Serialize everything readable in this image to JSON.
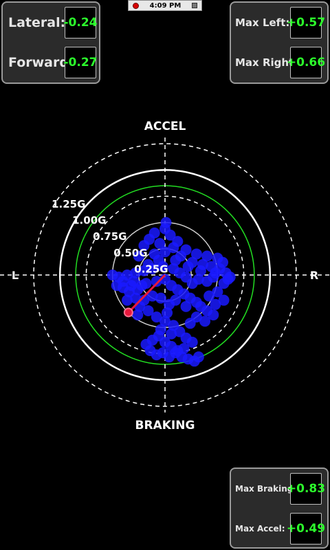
{
  "status_bar": {
    "time": "4:09 PM"
  },
  "top_left": {
    "lateral_label": "Lateral:",
    "lateral_value": "-0.24",
    "forward_label": "Forward:",
    "forward_value": "-0.27"
  },
  "top_right": {
    "max_left_label": "Max Left:",
    "max_left_value": "+0.57",
    "max_right_label": "Max Right:",
    "max_right_value": "+0.66"
  },
  "bottom_right": {
    "max_braking_label": "Max Braking:",
    "max_braking_value": "+0.83",
    "max_accel_label": "Max Accel:",
    "max_accel_value": "+0.49"
  },
  "plot": {
    "accel_label": "ACCEL",
    "braking_label": "BRAKING",
    "left_label": "L",
    "right_label": "R",
    "rings": [
      {
        "g": 0.25,
        "label": "0.25G",
        "style": "solid",
        "color": "#cfcfcf"
      },
      {
        "g": 0.5,
        "label": "0.50G",
        "style": "solid",
        "color": "#cfcfcf"
      },
      {
        "g": 0.75,
        "label": "0.75G",
        "style": "dashed",
        "color": "#ffffff"
      },
      {
        "g": 0.85,
        "label": "",
        "style": "solid",
        "color": "#22dd22"
      },
      {
        "g": 1.0,
        "label": "1.00G",
        "style": "solid",
        "color": "#ffffff"
      },
      {
        "g": 1.25,
        "label": "1.25G",
        "style": "dashed",
        "color": "#ffffff"
      }
    ],
    "current_point": {
      "lateral": -0.24,
      "forward": -0.27
    },
    "trace_points": [
      [
        0.01,
        0.5
      ],
      [
        0.0,
        0.44
      ],
      [
        -0.1,
        0.4
      ],
      [
        0.05,
        0.38
      ],
      [
        -0.15,
        0.34
      ],
      [
        0.12,
        0.32
      ],
      [
        -0.05,
        0.3
      ],
      [
        0.08,
        0.26
      ],
      [
        -0.2,
        0.28
      ],
      [
        0.2,
        0.24
      ],
      [
        0.0,
        0.22
      ],
      [
        -0.1,
        0.2
      ],
      [
        0.15,
        0.18
      ],
      [
        -0.25,
        0.18
      ],
      [
        0.3,
        0.2
      ],
      [
        0.4,
        0.18
      ],
      [
        0.5,
        0.16
      ],
      [
        0.55,
        0.12
      ],
      [
        0.52,
        0.06
      ],
      [
        0.48,
        0.02
      ],
      [
        0.36,
        0.1
      ],
      [
        0.26,
        0.12
      ],
      [
        0.44,
        0.08
      ],
      [
        0.58,
        0.02
      ],
      [
        0.6,
        -0.04
      ],
      [
        0.62,
        -0.02
      ],
      [
        0.56,
        -0.08
      ],
      [
        0.46,
        -0.02
      ],
      [
        0.4,
        -0.06
      ],
      [
        0.32,
        -0.04
      ],
      [
        0.26,
        -0.08
      ],
      [
        0.2,
        -0.02
      ],
      [
        0.14,
        0.02
      ],
      [
        0.08,
        0.06
      ],
      [
        -0.02,
        0.08
      ],
      [
        -0.12,
        0.06
      ],
      [
        -0.2,
        0.04
      ],
      [
        -0.28,
        0.02
      ],
      [
        -0.36,
        0.0
      ],
      [
        -0.44,
        -0.02
      ],
      [
        -0.5,
        0.0
      ],
      [
        -0.4,
        -0.06
      ],
      [
        -0.32,
        -0.1
      ],
      [
        -0.26,
        -0.14
      ],
      [
        -0.18,
        -0.08
      ],
      [
        -0.08,
        -0.06
      ],
      [
        0.0,
        -0.04
      ],
      [
        0.06,
        -0.1
      ],
      [
        0.12,
        -0.14
      ],
      [
        0.18,
        -0.18
      ],
      [
        0.24,
        -0.22
      ],
      [
        0.3,
        -0.26
      ],
      [
        0.34,
        -0.3
      ],
      [
        0.4,
        -0.34
      ],
      [
        0.46,
        -0.38
      ],
      [
        0.38,
        -0.44
      ],
      [
        0.3,
        -0.4
      ],
      [
        0.2,
        -0.3
      ],
      [
        0.1,
        -0.24
      ],
      [
        0.04,
        -0.28
      ],
      [
        -0.04,
        -0.22
      ],
      [
        -0.12,
        -0.2
      ],
      [
        -0.2,
        -0.24
      ],
      [
        -0.28,
        -0.22
      ],
      [
        -0.34,
        -0.16
      ],
      [
        -0.4,
        -0.12
      ],
      [
        -0.46,
        -0.1
      ],
      [
        -0.36,
        -0.24
      ],
      [
        -0.24,
        -0.3
      ],
      [
        -0.16,
        -0.34
      ],
      [
        -0.08,
        -0.4
      ],
      [
        0.0,
        -0.44
      ],
      [
        0.08,
        -0.48
      ],
      [
        0.14,
        -0.54
      ],
      [
        0.2,
        -0.6
      ],
      [
        0.26,
        -0.64
      ],
      [
        0.18,
        -0.7
      ],
      [
        0.1,
        -0.74
      ],
      [
        0.04,
        -0.78
      ],
      [
        -0.02,
        -0.74
      ],
      [
        -0.08,
        -0.76
      ],
      [
        -0.14,
        -0.72
      ],
      [
        -0.18,
        -0.66
      ],
      [
        -0.12,
        -0.62
      ],
      [
        -0.06,
        -0.58
      ],
      [
        0.0,
        -0.64
      ],
      [
        0.06,
        -0.68
      ],
      [
        0.12,
        -0.72
      ],
      [
        0.16,
        -0.78
      ],
      [
        0.22,
        -0.8
      ],
      [
        0.28,
        -0.82
      ],
      [
        0.32,
        -0.78
      ],
      [
        -0.04,
        -0.52
      ],
      [
        0.02,
        -0.36
      ],
      [
        -0.26,
        -0.38
      ],
      [
        0.22,
        0.08
      ],
      [
        0.1,
        0.14
      ],
      [
        -0.06,
        0.14
      ],
      [
        -0.16,
        0.1
      ],
      [
        0.34,
        0.04
      ],
      [
        0.5,
        -0.16
      ],
      [
        0.42,
        -0.2
      ],
      [
        0.56,
        -0.24
      ],
      [
        0.48,
        -0.28
      ],
      [
        0.24,
        -0.46
      ],
      [
        0.06,
        -0.56
      ],
      [
        -0.3,
        -0.06
      ],
      [
        -0.22,
        -0.1
      ]
    ]
  }
}
